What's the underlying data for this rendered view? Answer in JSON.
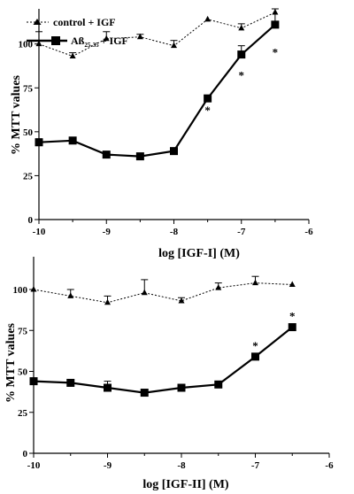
{
  "chart_data": [
    {
      "type": "line",
      "xlabel": "log [IGF-I] (M)",
      "ylabel": "% MTT values",
      "xlim": [
        -10,
        -6
      ],
      "ylim": [
        0,
        120
      ],
      "x_ticks": [
        "-10",
        "-9",
        "-8",
        "-7",
        "-6"
      ],
      "y_ticks": [
        "0",
        "25",
        "50",
        "75",
        "100"
      ],
      "legend": {
        "placement": "top-left",
        "control": "control + IGF",
        "abeta_prefix": "Aß",
        "abeta_subscript": "25-35",
        "abeta_suffix": "+ IGF"
      },
      "series": [
        {
          "key": "control",
          "color": "#000000",
          "marker": "triangle",
          "line": "dashed",
          "x": [
            -10,
            -9.5,
            -9,
            -8.5,
            -8,
            -7.5,
            -7,
            -6.5
          ],
          "y": [
            100,
            93,
            103,
            104,
            99,
            114,
            109,
            118
          ],
          "err": [
            7,
            2,
            4,
            1.5,
            3,
            0,
            2.5,
            0
          ]
        },
        {
          "key": "abeta",
          "color": "#000000",
          "marker": "square",
          "line": "solid",
          "x": [
            -10,
            -9.5,
            -9,
            -8.5,
            -8,
            -7.5,
            -7,
            -6.5
          ],
          "y": [
            44,
            45,
            37,
            36,
            39,
            69,
            94,
            111
          ],
          "err": [
            2,
            1.5,
            0,
            1.5,
            0,
            0,
            5,
            9
          ]
        }
      ],
      "significance": [
        {
          "x": -7.5,
          "y": 69,
          "label": "*"
        },
        {
          "x": -7,
          "y": 94,
          "label": "*"
        },
        {
          "x": -6.5,
          "y": 111,
          "label": "*"
        }
      ]
    },
    {
      "type": "line",
      "xlabel": "log [IGF-II] (M)",
      "ylabel": "% MTT values",
      "xlim": [
        -10,
        -6
      ],
      "ylim": [
        0,
        120
      ],
      "x_ticks": [
        "-10",
        "-9",
        "-8",
        "-7",
        "-6"
      ],
      "y_ticks": [
        "0",
        "25",
        "50",
        "75",
        "100"
      ],
      "series": [
        {
          "key": "control",
          "color": "#000000",
          "marker": "triangle",
          "line": "dashed",
          "x": [
            -10,
            -9.5,
            -9,
            -8.5,
            -8,
            -7.5,
            -7,
            -6.5
          ],
          "y": [
            100,
            96,
            92,
            98,
            93,
            101,
            104,
            103
          ],
          "err": [
            0,
            4,
            4,
            8,
            2,
            3,
            4,
            0
          ]
        },
        {
          "key": "abeta",
          "color": "#000000",
          "marker": "square",
          "line": "solid",
          "x": [
            -10,
            -9.5,
            -9,
            -8.5,
            -8,
            -7.5,
            -7,
            -6.5
          ],
          "y": [
            44,
            43,
            40,
            37,
            40,
            42,
            59,
            77
          ],
          "err": [
            0,
            0,
            4,
            0,
            0,
            0,
            0,
            0
          ]
        }
      ],
      "significance": [
        {
          "x": -7,
          "y": 59,
          "label": "*"
        },
        {
          "x": -6.5,
          "y": 77,
          "label": "*"
        }
      ]
    }
  ]
}
